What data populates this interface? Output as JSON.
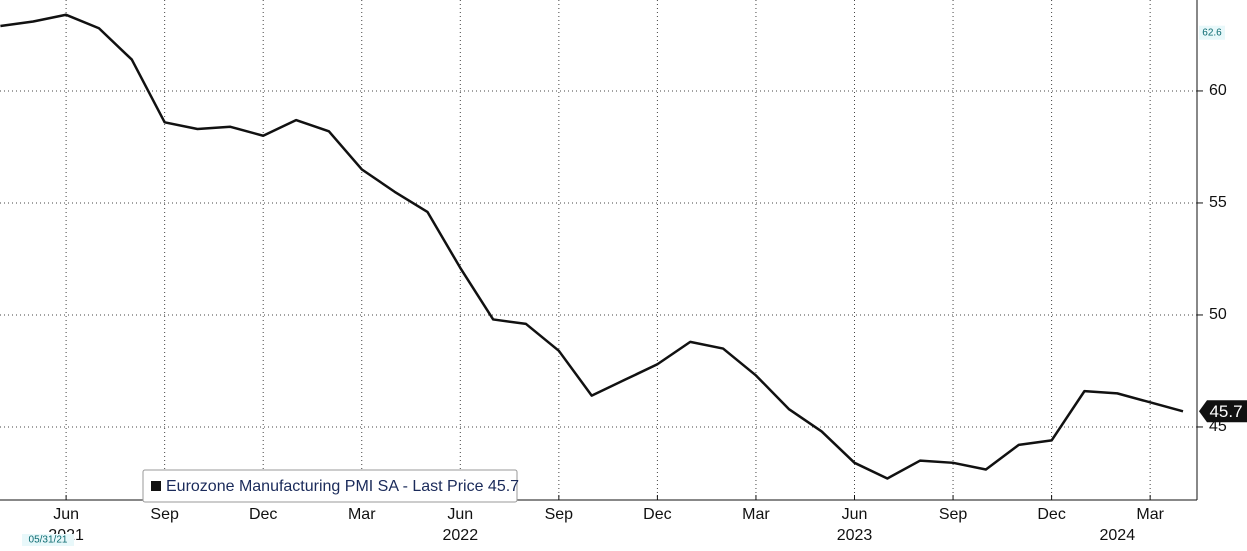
{
  "chart_data": {
    "type": "line",
    "categories": [
      null,
      null,
      "Jun",
      null,
      null,
      "Sep",
      null,
      null,
      "Dec",
      null,
      null,
      "Mar",
      null,
      null,
      "Jun",
      null,
      null,
      "Sep",
      null,
      null,
      "Dec",
      null,
      null,
      "Mar",
      null,
      null,
      "Jun",
      null,
      null,
      "Sep",
      null,
      null,
      "Dec",
      null,
      null,
      "Mar",
      null
    ],
    "year_labels": [
      "2021",
      "2022",
      "2023",
      "2024"
    ],
    "series": [
      {
        "name": "Eurozone Manufacturing PMI SA - Last Price 45.7",
        "color": "#111111",
        "values": [
          62.9,
          63.1,
          63.4,
          62.8,
          61.4,
          58.6,
          58.3,
          58.4,
          58.0,
          58.7,
          58.2,
          56.5,
          55.5,
          54.6,
          52.1,
          49.8,
          49.6,
          48.4,
          46.4,
          47.1,
          47.8,
          48.8,
          48.5,
          47.3,
          45.8,
          44.8,
          43.4,
          42.7,
          43.5,
          43.4,
          43.1,
          44.2,
          44.4,
          46.6,
          46.5,
          46.1,
          45.7
        ]
      }
    ],
    "ylim": [
      41.74,
      64.06
    ],
    "yticks": [
      45,
      50,
      55,
      60
    ],
    "axis_marker": 62.6,
    "date_label": "05/31/21",
    "grid": true,
    "legend": "bottom-left"
  }
}
